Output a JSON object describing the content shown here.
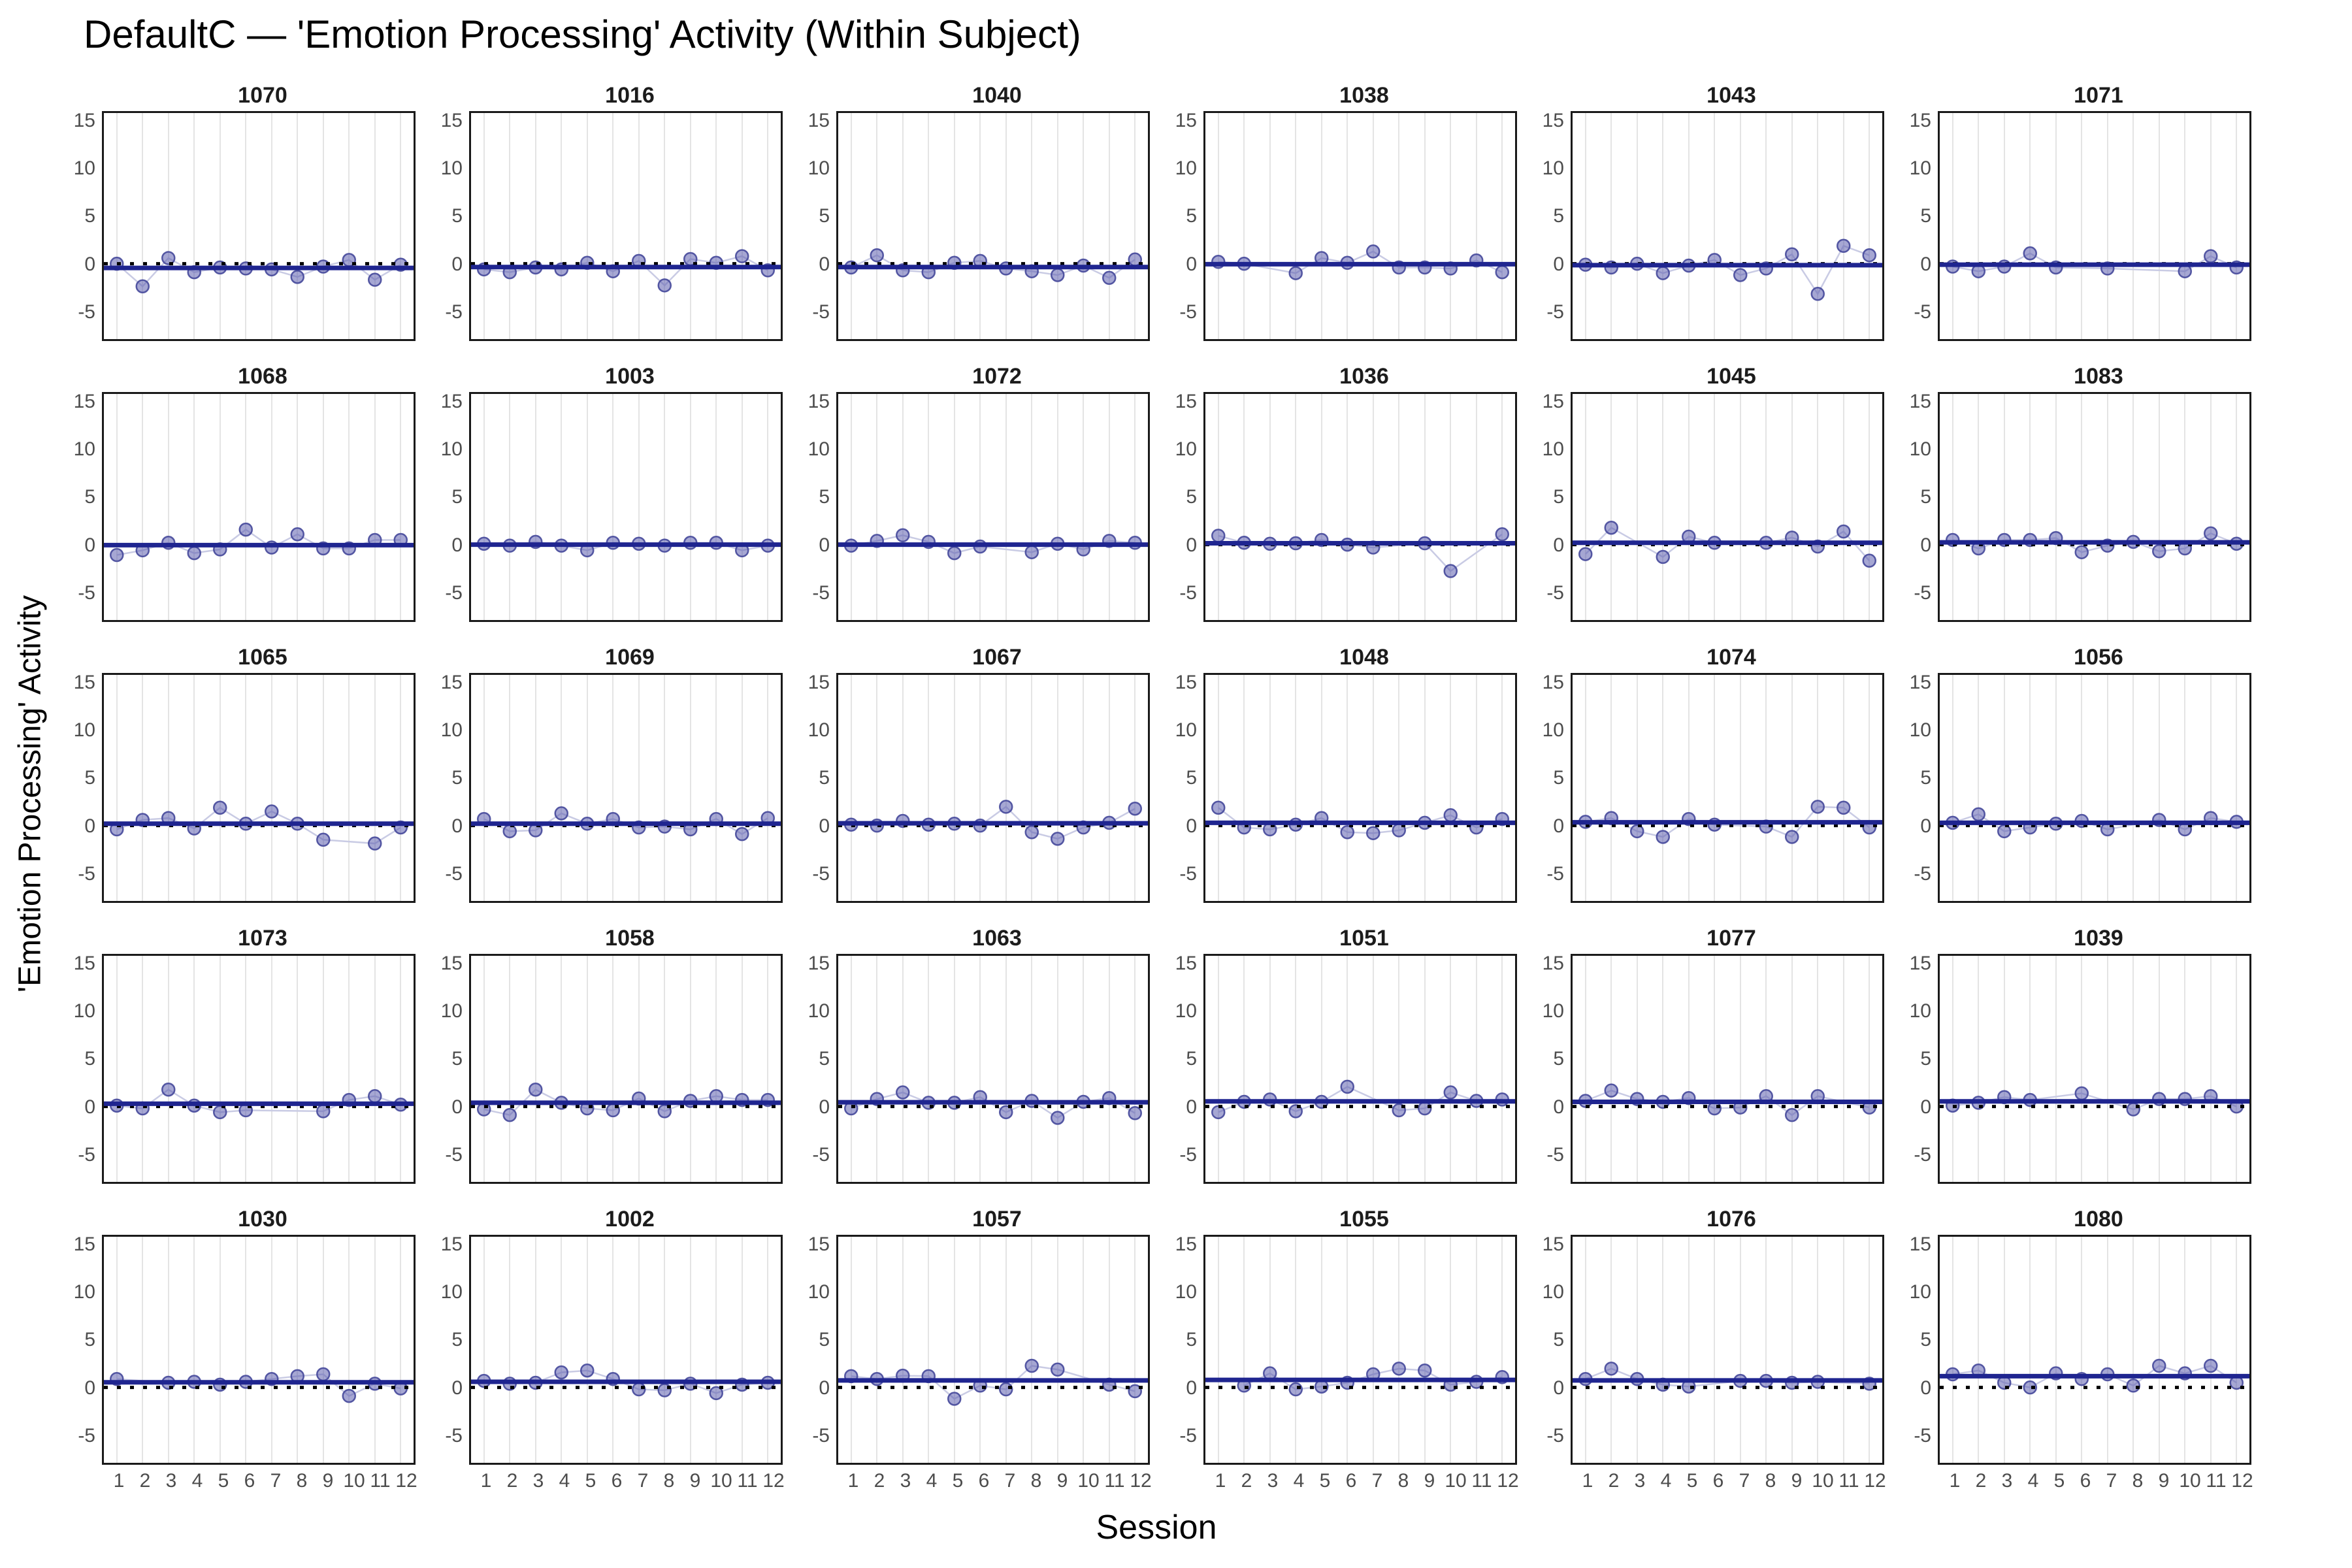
{
  "title": "DefaultC — 'Emotion Processing' Activity (Within Subject)",
  "axes": {
    "x_label": "Session",
    "y_label": "'Emotion Processing' Activity",
    "y_ticks": [
      15,
      10,
      5,
      0,
      -5
    ],
    "x_ticks": [
      1,
      2,
      3,
      4,
      5,
      6,
      7,
      8,
      9,
      10,
      11,
      12
    ],
    "y_domain": [
      -8,
      16
    ]
  },
  "colors": {
    "point_fill": "#5c5fae",
    "point_stroke": "#45489a",
    "connector": "#c9cbe4",
    "trend_line": "#1f2590",
    "zero_line": "#000000",
    "gridline": "#e4e4e4",
    "panel_border": "#1a1a1a",
    "tick_text": "#4d4d4d"
  },
  "chart_data": {
    "type": "scatter",
    "title": "DefaultC — 'Emotion Processing' Activity (Within Subject)",
    "xlabel": "Session",
    "ylabel": "'Emotion Processing' Activity",
    "x_range": [
      1,
      12
    ],
    "ylim": [
      -8,
      16
    ],
    "grid": "vertical-only",
    "legend": "none",
    "facets": [
      {
        "id": "1070",
        "sessions": [
          1,
          2,
          3,
          4,
          5,
          6,
          7,
          8,
          9,
          10,
          11,
          12
        ],
        "values": [
          0.0,
          -2.4,
          0.6,
          -0.9,
          -0.4,
          -0.5,
          -0.6,
          -1.4,
          -0.3,
          0.4,
          -1.7,
          -0.1
        ],
        "trend": -0.45
      },
      {
        "id": "1016",
        "sessions": [
          1,
          2,
          3,
          4,
          5,
          6,
          7,
          8,
          9,
          10,
          11,
          12
        ],
        "values": [
          -0.6,
          -0.9,
          -0.4,
          -0.6,
          0.1,
          -0.8,
          0.3,
          -2.3,
          0.5,
          0.1,
          0.8,
          -0.7
        ],
        "trend": -0.35
      },
      {
        "id": "1040",
        "sessions": [
          1,
          2,
          3,
          4,
          5,
          6,
          7,
          8,
          9,
          10,
          11,
          12
        ],
        "values": [
          -0.4,
          0.9,
          -0.7,
          -0.9,
          0.1,
          0.3,
          -0.5,
          -0.8,
          -1.2,
          -0.2,
          -1.5,
          0.45
        ],
        "trend": -0.35
      },
      {
        "id": "1038",
        "sessions": [
          1,
          2,
          4,
          5,
          6,
          7,
          8,
          9,
          10,
          11,
          12
        ],
        "values": [
          0.2,
          0.0,
          -1.0,
          0.6,
          0.1,
          1.3,
          -0.4,
          -0.4,
          -0.5,
          0.35,
          -0.9
        ],
        "trend": -0.05
      },
      {
        "id": "1043",
        "sessions": [
          1,
          2,
          3,
          4,
          5,
          6,
          7,
          8,
          9,
          10,
          11,
          12
        ],
        "values": [
          -0.1,
          -0.4,
          0.0,
          -1.0,
          -0.2,
          0.4,
          -1.2,
          -0.5,
          1.0,
          -3.2,
          1.9,
          0.9
        ],
        "trend": -0.15
      },
      {
        "id": "1071",
        "sessions": [
          1,
          2,
          3,
          4,
          5,
          7,
          10,
          11,
          12
        ],
        "values": [
          -0.3,
          -0.8,
          -0.3,
          1.1,
          -0.4,
          -0.5,
          -0.8,
          0.8,
          -0.4
        ],
        "trend": -0.1
      },
      {
        "id": "1068",
        "sessions": [
          1,
          2,
          3,
          4,
          5,
          6,
          7,
          8,
          9,
          10,
          11,
          12
        ],
        "values": [
          -1.1,
          -0.6,
          0.2,
          -0.9,
          -0.5,
          1.6,
          -0.3,
          1.1,
          -0.4,
          -0.4,
          0.5,
          0.5
        ],
        "trend": -0.05
      },
      {
        "id": "1003",
        "sessions": [
          1,
          2,
          3,
          4,
          5,
          6,
          7,
          8,
          9,
          10,
          11,
          12
        ],
        "values": [
          0.1,
          -0.1,
          0.3,
          -0.1,
          -0.6,
          0.2,
          0.1,
          -0.1,
          0.2,
          0.2,
          -0.6,
          -0.1
        ],
        "trend": 0.0
      },
      {
        "id": "1072",
        "sessions": [
          1,
          2,
          3,
          4,
          5,
          6,
          8,
          9,
          10,
          11,
          12
        ],
        "values": [
          -0.1,
          0.4,
          1.0,
          0.3,
          -0.9,
          -0.2,
          -0.8,
          0.1,
          -0.5,
          0.4,
          0.2
        ],
        "trend": 0.0
      },
      {
        "id": "1036",
        "sessions": [
          1,
          2,
          3,
          4,
          5,
          6,
          7,
          9,
          10,
          12
        ],
        "values": [
          0.95,
          0.2,
          0.1,
          0.15,
          0.5,
          0.0,
          -0.3,
          0.15,
          -2.8,
          1.1
        ],
        "trend": 0.15
      },
      {
        "id": "1045",
        "sessions": [
          1,
          2,
          4,
          5,
          6,
          8,
          9,
          10,
          11,
          12
        ],
        "values": [
          -1.0,
          1.8,
          -1.3,
          0.85,
          0.2,
          0.2,
          0.75,
          -0.2,
          1.4,
          -1.7
        ],
        "trend": 0.2
      },
      {
        "id": "1083",
        "sessions": [
          1,
          2,
          3,
          4,
          5,
          6,
          7,
          8,
          9,
          10,
          11,
          12
        ],
        "values": [
          0.5,
          -0.4,
          0.5,
          0.5,
          0.7,
          -0.8,
          -0.1,
          0.3,
          -0.7,
          -0.4,
          1.2,
          0.1
        ],
        "trend": 0.25
      },
      {
        "id": "1065",
        "sessions": [
          1,
          2,
          3,
          4,
          5,
          6,
          7,
          8,
          9,
          11,
          12
        ],
        "values": [
          -0.4,
          0.6,
          0.8,
          -0.3,
          1.9,
          0.2,
          1.5,
          0.2,
          -1.5,
          -1.9,
          -0.2
        ],
        "trend": 0.2
      },
      {
        "id": "1069",
        "sessions": [
          1,
          2,
          3,
          4,
          5,
          6,
          7,
          8,
          9,
          10,
          11,
          12
        ],
        "values": [
          0.7,
          -0.6,
          -0.5,
          1.3,
          0.2,
          0.7,
          -0.2,
          -0.1,
          -0.4,
          0.7,
          -0.9,
          0.8
        ],
        "trend": 0.2
      },
      {
        "id": "1067",
        "sessions": [
          1,
          2,
          3,
          4,
          5,
          6,
          7,
          8,
          9,
          10,
          11,
          12
        ],
        "values": [
          0.1,
          0.0,
          0.5,
          0.1,
          0.2,
          0.0,
          2.0,
          -0.7,
          -1.4,
          -0.2,
          0.3,
          1.8
        ],
        "trend": 0.25
      },
      {
        "id": "1048",
        "sessions": [
          1,
          2,
          3,
          4,
          5,
          6,
          7,
          8,
          9,
          10,
          11,
          12
        ],
        "values": [
          1.9,
          -0.2,
          -0.4,
          0.1,
          0.8,
          -0.7,
          -0.8,
          -0.5,
          0.3,
          1.1,
          -0.2,
          0.7
        ],
        "trend": 0.3
      },
      {
        "id": "1074",
        "sessions": [
          1,
          2,
          3,
          4,
          5,
          6,
          8,
          9,
          10,
          11,
          12
        ],
        "values": [
          0.4,
          0.8,
          -0.6,
          -1.2,
          0.7,
          0.1,
          -0.1,
          -1.2,
          2.0,
          1.9,
          -0.2
        ],
        "trend": 0.35
      },
      {
        "id": "1056",
        "sessions": [
          1,
          2,
          3,
          4,
          5,
          6,
          7,
          9,
          10,
          11,
          12
        ],
        "values": [
          0.3,
          1.2,
          -0.6,
          -0.2,
          0.2,
          0.5,
          -0.4,
          0.6,
          -0.4,
          0.8,
          0.4
        ],
        "trend": 0.3
      },
      {
        "id": "1073",
        "sessions": [
          1,
          2,
          3,
          4,
          5,
          6,
          9,
          10,
          11,
          12
        ],
        "values": [
          0.1,
          -0.2,
          1.8,
          0.1,
          -0.6,
          -0.4,
          -0.5,
          0.7,
          1.1,
          0.2
        ],
        "trend": 0.3
      },
      {
        "id": "1058",
        "sessions": [
          1,
          2,
          3,
          4,
          5,
          6,
          7,
          8,
          9,
          10,
          11,
          12
        ],
        "values": [
          -0.3,
          -0.9,
          1.8,
          0.4,
          -0.2,
          -0.4,
          0.85,
          -0.5,
          0.6,
          1.1,
          0.7,
          0.7
        ],
        "trend": 0.4
      },
      {
        "id": "1063",
        "sessions": [
          1,
          2,
          3,
          4,
          5,
          6,
          7,
          8,
          9,
          10,
          11,
          12
        ],
        "values": [
          -0.2,
          0.8,
          1.5,
          0.4,
          0.4,
          1.0,
          -0.6,
          0.6,
          -1.2,
          0.5,
          0.9,
          -0.7
        ],
        "trend": 0.45
      },
      {
        "id": "1051",
        "sessions": [
          1,
          2,
          3,
          4,
          5,
          6,
          8,
          9,
          10,
          11,
          12
        ],
        "values": [
          -0.6,
          0.5,
          0.75,
          -0.5,
          0.5,
          2.1,
          -0.4,
          -0.2,
          1.5,
          0.6,
          0.75
        ],
        "trend": 0.55
      },
      {
        "id": "1077",
        "sessions": [
          1,
          2,
          3,
          4,
          5,
          6,
          7,
          8,
          9,
          10,
          12
        ],
        "values": [
          0.6,
          1.7,
          0.8,
          0.5,
          0.9,
          -0.2,
          -0.1,
          1.1,
          -0.9,
          1.1,
          -0.1
        ],
        "trend": 0.5
      },
      {
        "id": "1039",
        "sessions": [
          1,
          2,
          3,
          4,
          6,
          8,
          9,
          10,
          11,
          12
        ],
        "values": [
          0.1,
          0.4,
          1.0,
          0.7,
          1.4,
          -0.3,
          0.8,
          0.8,
          1.1,
          0.0
        ],
        "trend": 0.55
      },
      {
        "id": "1030",
        "sessions": [
          1,
          3,
          4,
          5,
          6,
          7,
          8,
          9,
          10,
          11,
          12
        ],
        "values": [
          0.9,
          0.5,
          0.6,
          0.3,
          0.6,
          0.9,
          1.2,
          1.4,
          -0.9,
          0.4,
          -0.1
        ],
        "trend": 0.55
      },
      {
        "id": "1002",
        "sessions": [
          1,
          2,
          3,
          4,
          5,
          6,
          7,
          8,
          9,
          10,
          11,
          12
        ],
        "values": [
          0.7,
          0.4,
          0.5,
          1.6,
          1.8,
          0.9,
          -0.2,
          -0.3,
          0.4,
          -0.6,
          0.3,
          0.5
        ],
        "trend": 0.6
      },
      {
        "id": "1057",
        "sessions": [
          1,
          2,
          3,
          4,
          5,
          6,
          7,
          8,
          9,
          11,
          12
        ],
        "values": [
          1.2,
          0.9,
          1.25,
          1.2,
          -1.2,
          0.2,
          -0.2,
          2.3,
          1.9,
          0.3,
          -0.4
        ],
        "trend": 0.75
      },
      {
        "id": "1055",
        "sessions": [
          2,
          3,
          4,
          5,
          6,
          7,
          8,
          9,
          10,
          11,
          12
        ],
        "values": [
          0.2,
          1.5,
          -0.2,
          0.1,
          0.5,
          1.4,
          2.0,
          1.8,
          0.3,
          0.6,
          1.1
        ],
        "trend": 0.8
      },
      {
        "id": "1076",
        "sessions": [
          1,
          2,
          3,
          4,
          5,
          7,
          8,
          9,
          10,
          12
        ],
        "values": [
          0.9,
          2.0,
          0.9,
          0.3,
          0.1,
          0.7,
          0.7,
          0.5,
          0.6,
          0.4
        ],
        "trend": 0.75
      },
      {
        "id": "1080",
        "sessions": [
          1,
          2,
          3,
          4,
          5,
          6,
          7,
          8,
          9,
          10,
          11,
          12
        ],
        "values": [
          1.4,
          1.8,
          0.5,
          0.0,
          1.5,
          0.9,
          1.4,
          0.2,
          2.3,
          1.5,
          2.3,
          0.5
        ],
        "trend": 1.2
      }
    ]
  }
}
